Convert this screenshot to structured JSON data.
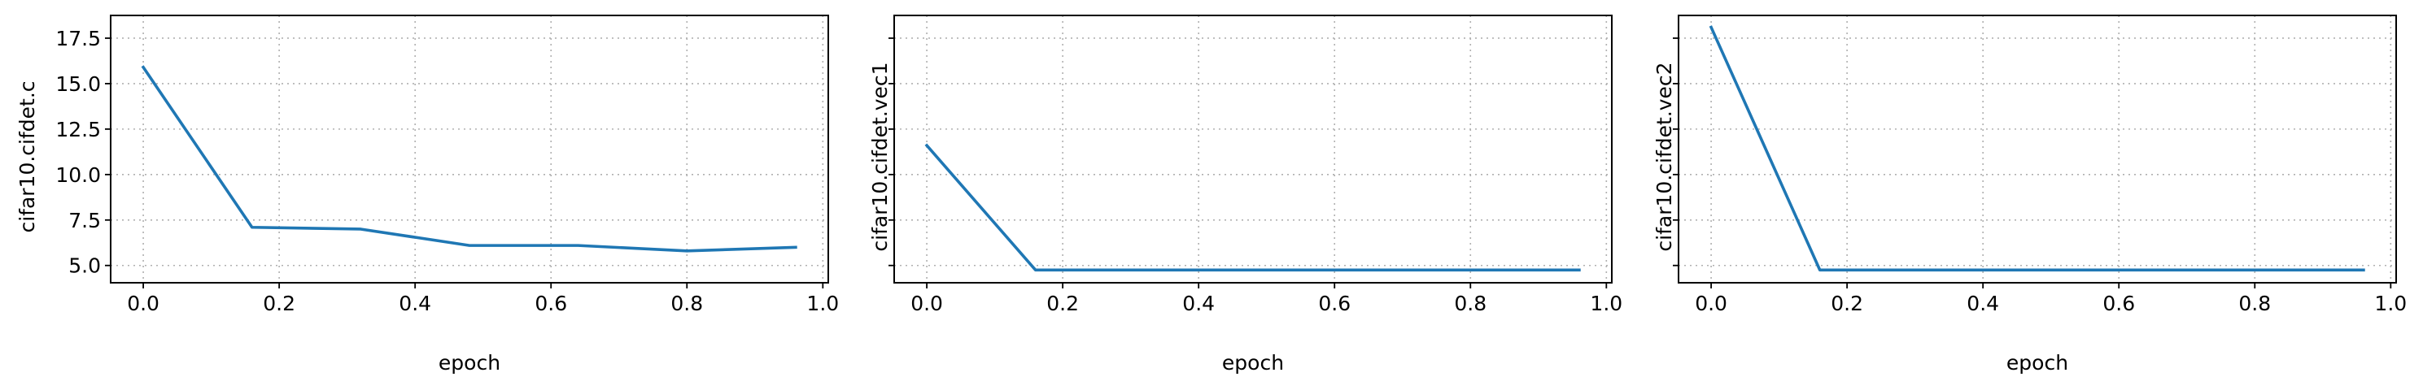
{
  "colors": {
    "series": "#1f77b4",
    "grid": "#b0b0b0",
    "frame": "#000000",
    "background": "#ffffff"
  },
  "chart_data": [
    {
      "type": "line",
      "xlabel": "epoch",
      "ylabel": "cifar10.cifdet.c",
      "xlim": [
        -0.048,
        1.008
      ],
      "ylim": [
        4.05,
        18.75
      ],
      "xticks": [
        0.0,
        0.2,
        0.4,
        0.6,
        0.8,
        1.0
      ],
      "xtick_labels": [
        "0.0",
        "0.2",
        "0.4",
        "0.6",
        "0.8",
        "1.0"
      ],
      "yticks": [
        5.0,
        7.5,
        10.0,
        12.5,
        15.0,
        17.5
      ],
      "ytick_labels": [
        "5.0",
        "7.5",
        "10.0",
        "12.5",
        "15.0",
        "17.5"
      ],
      "grid": true,
      "series": [
        {
          "x": [
            0.0,
            0.16,
            0.32,
            0.48,
            0.64,
            0.8,
            0.96
          ],
          "y": [
            15.9,
            7.1,
            7.0,
            6.1,
            6.1,
            5.8,
            6.0
          ]
        }
      ]
    },
    {
      "type": "line",
      "xlabel": "epoch",
      "ylabel": "cifar10.cifdet.vec1",
      "xlim": [
        -0.048,
        1.008
      ],
      "ylim": [
        4.05,
        18.75
      ],
      "xticks": [
        0.0,
        0.2,
        0.4,
        0.6,
        0.8,
        1.0
      ],
      "xtick_labels": [
        "0.0",
        "0.2",
        "0.4",
        "0.6",
        "0.8",
        "1.0"
      ],
      "yticks": [
        5.0,
        7.5,
        10.0,
        12.5,
        15.0,
        17.5
      ],
      "ytick_labels": [],
      "grid": true,
      "series": [
        {
          "x": [
            0.0,
            0.16,
            0.32,
            0.48,
            0.64,
            0.8,
            0.96
          ],
          "y": [
            11.6,
            4.75,
            4.75,
            4.75,
            4.75,
            4.75,
            4.75
          ]
        }
      ]
    },
    {
      "type": "line",
      "xlabel": "epoch",
      "ylabel": "cifar10.cifdet.vec2",
      "xlim": [
        -0.048,
        1.008
      ],
      "ylim": [
        4.05,
        18.75
      ],
      "xticks": [
        0.0,
        0.2,
        0.4,
        0.6,
        0.8,
        1.0
      ],
      "xtick_labels": [
        "0.0",
        "0.2",
        "0.4",
        "0.6",
        "0.8",
        "1.0"
      ],
      "yticks": [
        5.0,
        7.5,
        10.0,
        12.5,
        15.0,
        17.5
      ],
      "ytick_labels": [],
      "grid": true,
      "series": [
        {
          "x": [
            0.0,
            0.16,
            0.32,
            0.48,
            0.64,
            0.8,
            0.96
          ],
          "y": [
            18.1,
            4.75,
            4.75,
            4.75,
            4.75,
            4.75,
            4.75
          ]
        }
      ]
    }
  ]
}
